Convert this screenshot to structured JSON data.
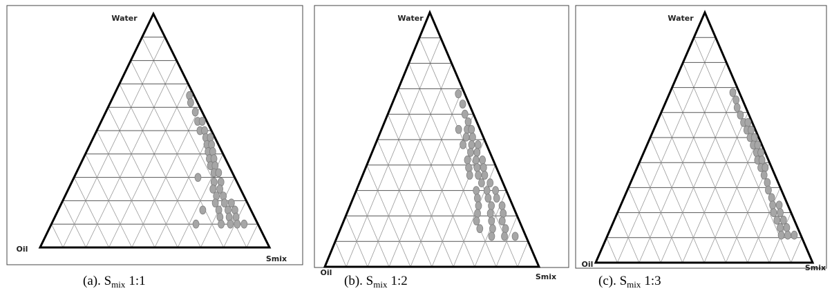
{
  "chart_data": [
    {
      "type": "ternary",
      "top_label": "Water",
      "left_label": "Oil",
      "right_label": "Smix",
      "caption_prefix": "(a). S",
      "caption_subscript": "mix",
      "caption_suffix": "1:1",
      "ticks": [
        10,
        20,
        30,
        40,
        50,
        60,
        70,
        80,
        90
      ],
      "grid": true,
      "color": "#a6a6a6",
      "points": {
        "water": [
          65,
          62,
          58,
          54,
          54,
          50,
          50,
          47,
          47,
          44,
          44,
          41,
          41,
          38,
          38,
          35,
          35,
          32,
          32,
          30,
          28,
          28,
          25,
          25,
          22,
          22,
          19,
          19,
          19,
          16,
          16,
          16,
          16,
          13,
          13,
          13,
          10,
          10,
          10,
          10,
          10
        ],
        "oil": [
          2,
          3,
          3,
          4,
          2,
          5,
          3,
          4,
          2,
          5,
          3,
          6,
          4,
          7,
          5,
          8,
          6,
          8,
          6,
          16,
          10,
          7,
          12,
          9,
          12,
          9,
          14,
          10,
          7,
          21,
          14,
          10,
          7,
          15,
          11,
          8,
          27,
          16,
          12,
          9,
          6
        ]
      }
    },
    {
      "type": "ternary",
      "top_label": "Water",
      "left_label": "Oil",
      "right_label": "Smix",
      "caption_prefix": "(b). S",
      "caption_subscript": "mix",
      "caption_suffix": "1:2",
      "ticks": [
        10,
        20,
        30,
        40,
        50,
        60,
        70,
        80,
        90
      ],
      "grid": true,
      "color": "#a6a6a6",
      "points": {
        "water": [
          68,
          64,
          60,
          57,
          54,
          54,
          54,
          51,
          51,
          48,
          48,
          48,
          45,
          45,
          42,
          42,
          42,
          39,
          39,
          39,
          36,
          36,
          36,
          33,
          33,
          30,
          30,
          30,
          27,
          27,
          27,
          24,
          24,
          24,
          21,
          21,
          21,
          18,
          18,
          18,
          15,
          15,
          15,
          12,
          12,
          12
        ],
        "oil": [
          3,
          3,
          4,
          4,
          10,
          6,
          4,
          8,
          5,
          11,
          7,
          4,
          9,
          6,
          12,
          8,
          5,
          13,
          9,
          6,
          14,
          10,
          7,
          10,
          6,
          14,
          9,
          5,
          15,
          10,
          6,
          16,
          10,
          5,
          18,
          12,
          6,
          20,
          13,
          8,
          20,
          14,
          8,
          16,
          10,
          5
        ]
      }
    },
    {
      "type": "ternary",
      "top_label": "Water",
      "left_label": "Oil",
      "right_label": "Smix",
      "caption_prefix": "(c).  S",
      "caption_subscript": "mix",
      "caption_suffix": "1:3",
      "ticks": [
        10,
        20,
        30,
        40,
        50,
        60,
        70,
        80,
        90
      ],
      "grid": true,
      "color": "#a6a6a6",
      "points": {
        "water": [
          68,
          65,
          62,
          59,
          56,
          56,
          53,
          53,
          50,
          50,
          47,
          47,
          44,
          44,
          41,
          41,
          38,
          38,
          35,
          32,
          29,
          26,
          23,
          23,
          20,
          20,
          17,
          17,
          14,
          14,
          11,
          11,
          11
        ],
        "oil": [
          3,
          3,
          4,
          4,
          4,
          2,
          4,
          2,
          4,
          2,
          4,
          2,
          4,
          2,
          5,
          3,
          5,
          3,
          5,
          5,
          6,
          6,
          7,
          4,
          8,
          5,
          8,
          5,
          8,
          5,
          9,
          6,
          3
        ]
      }
    }
  ]
}
